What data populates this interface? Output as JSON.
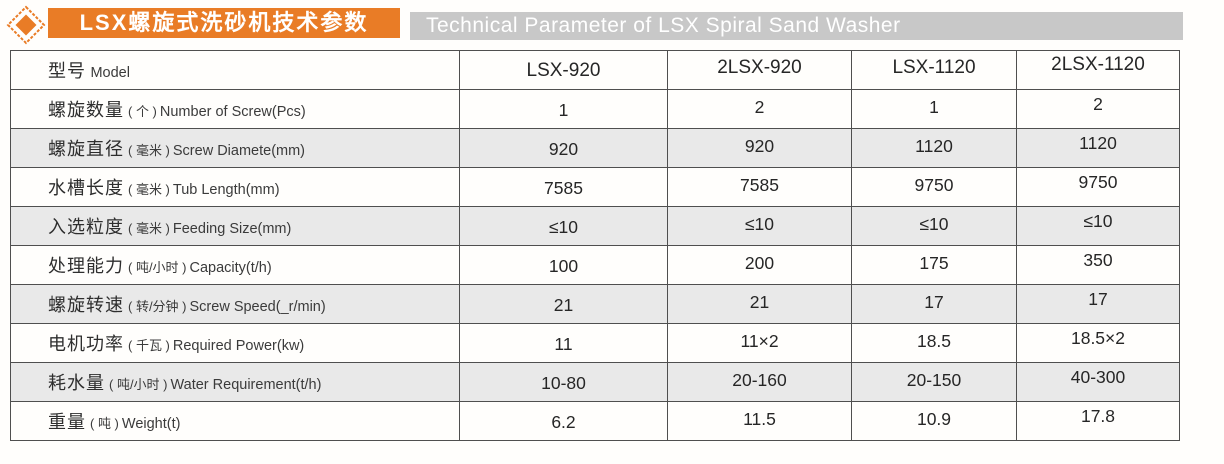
{
  "header": {
    "title_zh": "LSX螺旋式洗砂机技术参数",
    "title_en": "Technical Parameter of LSX Spiral Sand Washer",
    "accent_color": "#E97C26",
    "subtitle_bar_color": "#C8C8C8",
    "icon": "diamond-icon"
  },
  "table": {
    "model_label_zh": "型号",
    "model_label_en": "Model",
    "columns": [
      "LSX-920",
      "2LSX-920",
      "LSX-1120",
      "2LSX-1120"
    ],
    "shade_color": "#E9E9E9",
    "rows": [
      {
        "zh": "螺旋数量",
        "unit": "( 个 )",
        "en": "Number of Screw(Pcs)",
        "values": [
          "1",
          "2",
          "1",
          "2"
        ],
        "shaded": false
      },
      {
        "zh": "螺旋直径",
        "unit": "( 毫米 )",
        "en": "Screw Diamete(mm)",
        "values": [
          "920",
          "920",
          "1120",
          "1120"
        ],
        "shaded": true
      },
      {
        "zh": "水槽长度",
        "unit": "( 毫米 )",
        "en": "Tub Length(mm)",
        "values": [
          "7585",
          "7585",
          "9750",
          "9750"
        ],
        "shaded": false
      },
      {
        "zh": "入选粒度",
        "unit": "( 毫米 )",
        "en": "Feeding Size(mm)",
        "values": [
          "≤10",
          "≤10",
          "≤10",
          "≤10"
        ],
        "shaded": true
      },
      {
        "zh": "处理能力",
        "unit": "( 吨/小时 )",
        "en": "Capacity(t/h)",
        "values": [
          "100",
          "200",
          "175",
          "350"
        ],
        "shaded": false
      },
      {
        "zh": "螺旋转速",
        "unit": "( 转/分钟 )",
        "en": "Screw Speed(_r/min)",
        "values": [
          "21",
          "21",
          "17",
          "17"
        ],
        "shaded": true
      },
      {
        "zh": "电机功率",
        "unit": "( 千瓦 )",
        "en": "Required Power(kw)",
        "values": [
          "11",
          "11×2",
          "18.5",
          "18.5×2"
        ],
        "shaded": false
      },
      {
        "zh": "耗水量",
        "unit": "( 吨/小时 )",
        "en": "Water Requirement(t/h)",
        "values": [
          "10-80",
          "20-160",
          "20-150",
          "40-300"
        ],
        "shaded": true
      },
      {
        "zh": "重量",
        "unit": "( 吨 )",
        "en": "Weight(t)",
        "values": [
          "6.2",
          "11.5",
          "10.9",
          "17.8"
        ],
        "shaded": false
      }
    ]
  }
}
